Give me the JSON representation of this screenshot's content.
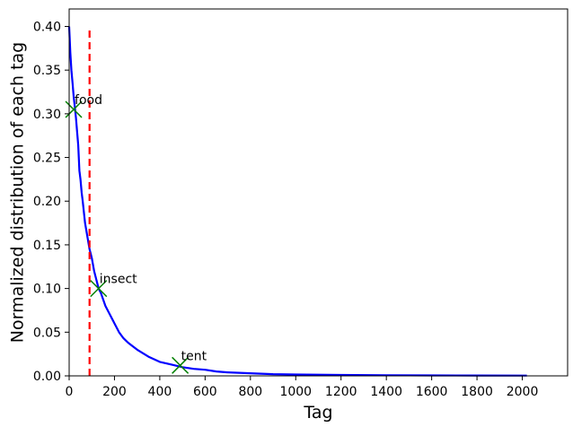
{
  "chart_data": {
    "type": "line",
    "title": "",
    "xlabel": "Tag",
    "ylabel": "Normalized distribution of each tag",
    "xlim": [
      0,
      2200
    ],
    "ylim": [
      0,
      0.42
    ],
    "xticks": [
      0,
      200,
      400,
      600,
      800,
      1000,
      1200,
      1400,
      1600,
      1800,
      2000
    ],
    "yticks": [
      0.0,
      0.05,
      0.1,
      0.15,
      0.2,
      0.25,
      0.3,
      0.35,
      0.4
    ],
    "xtick_labels": [
      "0",
      "200",
      "400",
      "600",
      "800",
      "1000",
      "1200",
      "1400",
      "1600",
      "1800",
      "2000"
    ],
    "ytick_labels": [
      "0.00",
      "0.05",
      "0.10",
      "0.15",
      "0.20",
      "0.25",
      "0.30",
      "0.35",
      "0.40"
    ],
    "grid": false,
    "series": [
      {
        "color": "#0000ff",
        "x": [
          0,
          5,
          10,
          15,
          20,
          25,
          30,
          35,
          40,
          45,
          50,
          55,
          60,
          70,
          80,
          90,
          100,
          110,
          120,
          130,
          140,
          160,
          180,
          200,
          220,
          240,
          260,
          280,
          300,
          350,
          400,
          450,
          500,
          550,
          600,
          650,
          700,
          800,
          900,
          1000,
          1200,
          1400,
          1600,
          1800,
          2000,
          2020
        ],
        "y": [
          0.4,
          0.37,
          0.35,
          0.335,
          0.32,
          0.308,
          0.295,
          0.28,
          0.264,
          0.235,
          0.225,
          0.21,
          0.2,
          0.175,
          0.16,
          0.145,
          0.135,
          0.12,
          0.11,
          0.1,
          0.095,
          0.08,
          0.07,
          0.06,
          0.05,
          0.043,
          0.038,
          0.034,
          0.03,
          0.022,
          0.016,
          0.013,
          0.01,
          0.008,
          0.007,
          0.005,
          0.004,
          0.003,
          0.002,
          0.0015,
          0.001,
          0.0007,
          0.0005,
          0.0004,
          0.0003,
          0.0003
        ]
      }
    ],
    "vline": {
      "x": 90,
      "y_range": [
        0.0,
        0.4
      ],
      "color": "#ff0000",
      "style": "dashed"
    },
    "annotations": [
      {
        "label": "food",
        "x": 20,
        "y": 0.305,
        "marker": "x",
        "color": "#008000"
      },
      {
        "label": "insect",
        "x": 130,
        "y": 0.1,
        "marker": "x",
        "color": "#008000"
      },
      {
        "label": "tent",
        "x": 490,
        "y": 0.012,
        "marker": "x",
        "color": "#008000"
      }
    ]
  }
}
